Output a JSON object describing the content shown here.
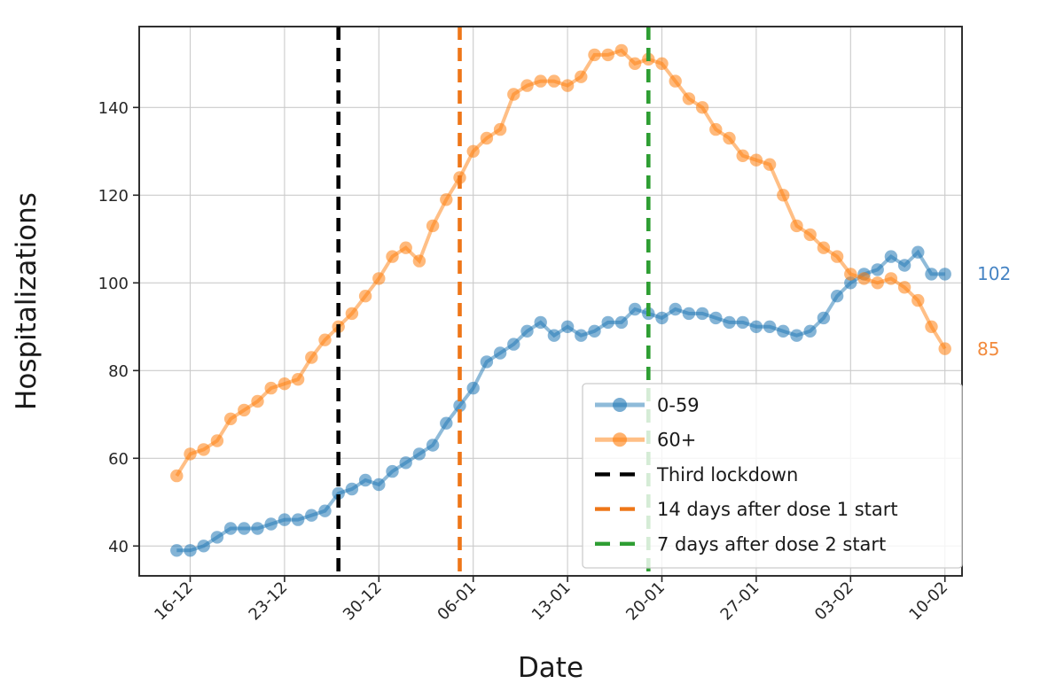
{
  "chart_data": {
    "type": "line",
    "title": "",
    "xlabel": "Date",
    "ylabel": "Hospitalizations",
    "grid": true,
    "legend_position": "lower right inside",
    "y_ticks": [
      40,
      60,
      80,
      100,
      120,
      140
    ],
    "ylim": [
      33,
      158
    ],
    "x_tick_labels": [
      "16-12",
      "23-12",
      "30-12",
      "06-01",
      "13-01",
      "20-01",
      "27-01",
      "03-02",
      "10-02"
    ],
    "x_tick_day_index": [
      1,
      8,
      15,
      22,
      29,
      36,
      43,
      50,
      57
    ],
    "series": [
      {
        "name": "0-59",
        "color": "#1f77b4",
        "marker": "circle",
        "values": [
          39,
          39,
          40,
          42,
          44,
          44,
          44,
          45,
          46,
          46,
          47,
          48,
          52,
          53,
          55,
          54,
          57,
          59,
          61,
          63,
          68,
          72,
          76,
          82,
          84,
          86,
          89,
          91,
          88,
          90,
          88,
          89,
          91,
          91,
          94,
          93,
          92,
          94,
          93,
          93,
          92,
          91,
          91,
          90,
          90,
          89,
          88,
          89,
          92,
          97,
          100,
          102,
          103,
          106,
          104,
          107,
          102,
          102
        ]
      },
      {
        "name": "60+",
        "color": "#ff7f0e",
        "marker": "circle",
        "values": [
          56,
          61,
          62,
          64,
          69,
          71,
          73,
          76,
          77,
          78,
          83,
          87,
          90,
          93,
          97,
          101,
          106,
          108,
          105,
          113,
          119,
          124,
          130,
          133,
          135,
          143,
          145,
          146,
          146,
          145,
          147,
          152,
          152,
          153,
          150,
          151,
          150,
          146,
          142,
          140,
          135,
          133,
          129,
          128,
          127,
          120,
          113,
          111,
          108,
          106,
          102,
          101,
          100,
          101,
          99,
          96,
          90,
          85
        ]
      }
    ],
    "vlines": [
      {
        "name": "Third lockdown",
        "color": "#000000",
        "day_index": 12
      },
      {
        "name": "14 days after dose 1 start",
        "color": "#ee7618",
        "day_index": 21
      },
      {
        "name": "7 days after dose 2 start",
        "color": "#2e9e33",
        "day_index": 35
      }
    ],
    "end_labels": [
      {
        "text": "102",
        "color": "#4684c4"
      },
      {
        "text": "85",
        "color": "#f28a3c"
      }
    ]
  }
}
